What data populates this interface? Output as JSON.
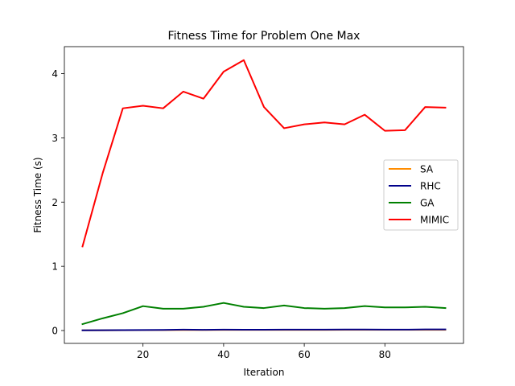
{
  "chart_data": {
    "type": "line",
    "title": "Fitness Time for Problem One Max",
    "xlabel": "Iteration",
    "ylabel": "Fitness Time (s)",
    "xlim": [
      0.5,
      99.5
    ],
    "ylim": [
      -0.2,
      4.42
    ],
    "xticks": [
      20,
      40,
      60,
      80
    ],
    "yticks": [
      0,
      1,
      2,
      3,
      4
    ],
    "legend_position": "center-right",
    "grid": false,
    "x": [
      5,
      10,
      15,
      20,
      25,
      30,
      35,
      40,
      45,
      50,
      55,
      60,
      65,
      70,
      75,
      80,
      85,
      90,
      95
    ],
    "series": [
      {
        "name": "SA",
        "color": "#ff8c00",
        "values": [
          0.003,
          0.004,
          0.005,
          0.006,
          0.007,
          0.008,
          0.008,
          0.009,
          0.009,
          0.009,
          0.01,
          0.01,
          0.01,
          0.011,
          0.011,
          0.011,
          0.011,
          0.012,
          0.012
        ]
      },
      {
        "name": "RHC",
        "color": "#00008b",
        "values": [
          0.004,
          0.005,
          0.006,
          0.008,
          0.01,
          0.014,
          0.012,
          0.014,
          0.013,
          0.013,
          0.015,
          0.014,
          0.014,
          0.016,
          0.016,
          0.015,
          0.014,
          0.017,
          0.018
        ]
      },
      {
        "name": "GA",
        "color": "#008000",
        "values": [
          0.1,
          0.19,
          0.27,
          0.38,
          0.34,
          0.34,
          0.37,
          0.43,
          0.37,
          0.35,
          0.39,
          0.35,
          0.34,
          0.35,
          0.38,
          0.36,
          0.36,
          0.37,
          0.35
        ]
      },
      {
        "name": "MIMIC",
        "color": "#ff0000",
        "values": [
          1.31,
          2.45,
          3.46,
          3.5,
          3.46,
          3.72,
          3.61,
          4.03,
          4.21,
          3.48,
          3.15,
          3.21,
          3.24,
          3.21,
          3.36,
          3.11,
          3.12,
          3.48,
          3.47
        ]
      }
    ]
  }
}
